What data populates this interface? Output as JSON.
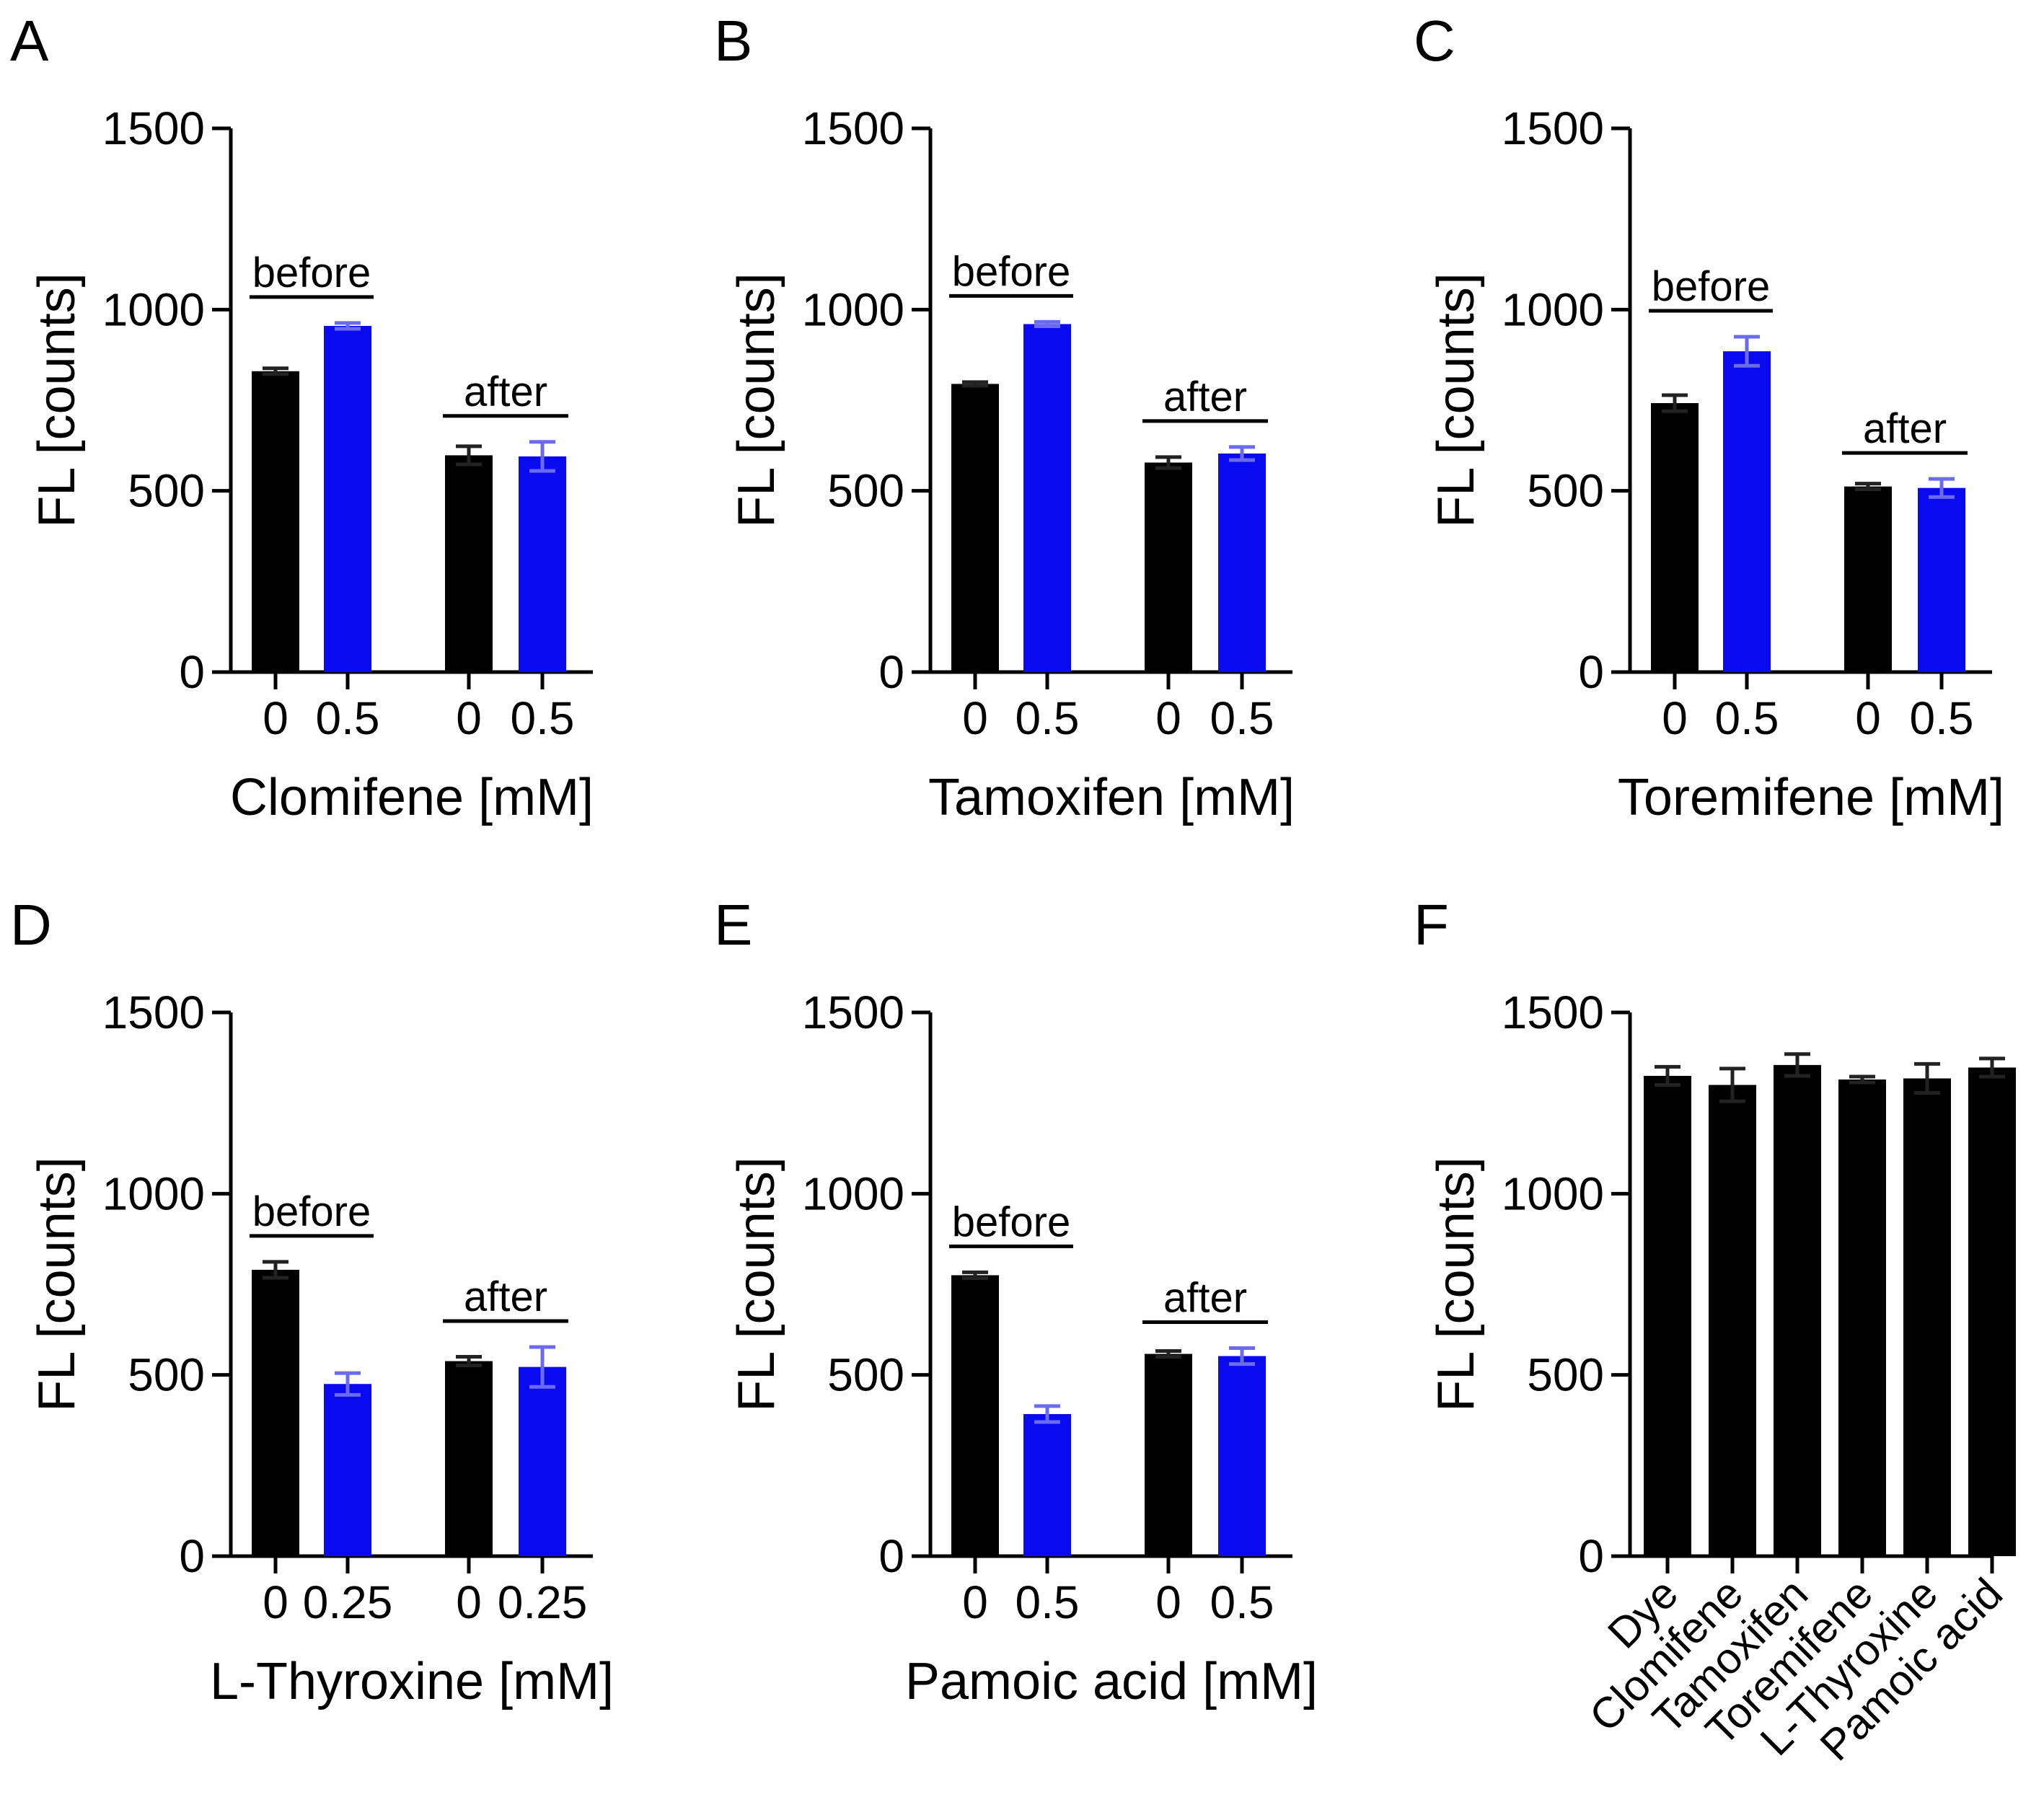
{
  "colors": {
    "control": "#000000",
    "treated": "#0a0af0",
    "treated_error": "#6b6bf0",
    "axis": "#000000"
  },
  "chart_data": [
    {
      "panel": "A",
      "type": "bar",
      "ylabel": "FL [counts]",
      "xlabel": "Clomifene [mM]",
      "yticks": [
        "0",
        "500",
        "1000",
        "1500"
      ],
      "ylim": [
        0,
        1500
      ],
      "groups": [
        {
          "label": "before",
          "bars": [
            {
              "category": "0",
              "value": 830,
              "error": 8,
              "color_key": "control"
            },
            {
              "category": "0.5",
              "value": 955,
              "error": 8,
              "color_key": "treated"
            }
          ]
        },
        {
          "label": "after",
          "bars": [
            {
              "category": "0",
              "value": 598,
              "error": 25,
              "color_key": "control"
            },
            {
              "category": "0.5",
              "value": 595,
              "error": 40,
              "color_key": "treated"
            }
          ]
        }
      ]
    },
    {
      "panel": "B",
      "type": "bar",
      "ylabel": "FL [counts]",
      "xlabel": "Tamoxifen [mM]",
      "yticks": [
        "0",
        "500",
        "1000",
        "1500"
      ],
      "ylim": [
        0,
        1500
      ],
      "groups": [
        {
          "label": "before",
          "bars": [
            {
              "category": "0",
              "value": 795,
              "error": 5,
              "color_key": "control"
            },
            {
              "category": "0.5",
              "value": 960,
              "error": 6,
              "color_key": "treated"
            }
          ]
        },
        {
          "label": "after",
          "bars": [
            {
              "category": "0",
              "value": 578,
              "error": 15,
              "color_key": "control"
            },
            {
              "category": "0.5",
              "value": 603,
              "error": 18,
              "color_key": "treated"
            }
          ]
        }
      ]
    },
    {
      "panel": "C",
      "type": "bar",
      "ylabel": "FL [counts]",
      "xlabel": "Toremifene [mM]",
      "yticks": [
        "0",
        "500",
        "1000",
        "1500"
      ],
      "ylim": [
        0,
        1500
      ],
      "groups": [
        {
          "label": "before",
          "bars": [
            {
              "category": "0",
              "value": 742,
              "error": 22,
              "color_key": "control"
            },
            {
              "category": "0.5",
              "value": 885,
              "error": 40,
              "color_key": "treated"
            }
          ]
        },
        {
          "label": "after",
          "bars": [
            {
              "category": "0",
              "value": 512,
              "error": 8,
              "color_key": "control"
            },
            {
              "category": "0.5",
              "value": 508,
              "error": 25,
              "color_key": "treated"
            }
          ]
        }
      ]
    },
    {
      "panel": "D",
      "type": "bar",
      "ylabel": "FL [counts]",
      "xlabel": "L-Thyroxine [mM]",
      "yticks": [
        "0",
        "500",
        "1000",
        "1500"
      ],
      "ylim": [
        0,
        1500
      ],
      "groups": [
        {
          "label": "before",
          "bars": [
            {
              "category": "0",
              "value": 790,
              "error": 22,
              "color_key": "control"
            },
            {
              "category": "0.25",
              "value": 475,
              "error": 30,
              "color_key": "treated"
            }
          ]
        },
        {
          "label": "after",
          "bars": [
            {
              "category": "0",
              "value": 538,
              "error": 12,
              "color_key": "control"
            },
            {
              "category": "0.25",
              "value": 522,
              "error": 55,
              "color_key": "treated"
            }
          ]
        }
      ]
    },
    {
      "panel": "E",
      "type": "bar",
      "ylabel": "FL [counts]",
      "xlabel": "Pamoic acid [mM]",
      "yticks": [
        "0",
        "500",
        "1000",
        "1500"
      ],
      "ylim": [
        0,
        1500
      ],
      "groups": [
        {
          "label": "before",
          "bars": [
            {
              "category": "0",
              "value": 775,
              "error": 8,
              "color_key": "control"
            },
            {
              "category": "0.5",
              "value": 392,
              "error": 22,
              "color_key": "treated"
            }
          ]
        },
        {
          "label": "after",
          "bars": [
            {
              "category": "0",
              "value": 558,
              "error": 8,
              "color_key": "control"
            },
            {
              "category": "0.5",
              "value": 552,
              "error": 22,
              "color_key": "treated"
            }
          ]
        }
      ]
    },
    {
      "panel": "F",
      "type": "bar",
      "ylabel": "FL [counts]",
      "xlabel": "",
      "yticks": [
        "0",
        "500",
        "1000",
        "1500"
      ],
      "ylim": [
        0,
        1500
      ],
      "categories": [
        "Dye",
        "Clomifene",
        "Tamoxifen",
        "Toremifene",
        "L-Thyroxine",
        "Pamoic acid"
      ],
      "values": [
        1325,
        1300,
        1355,
        1315,
        1318,
        1348
      ],
      "errors": [
        25,
        45,
        30,
        8,
        40,
        25
      ]
    }
  ]
}
